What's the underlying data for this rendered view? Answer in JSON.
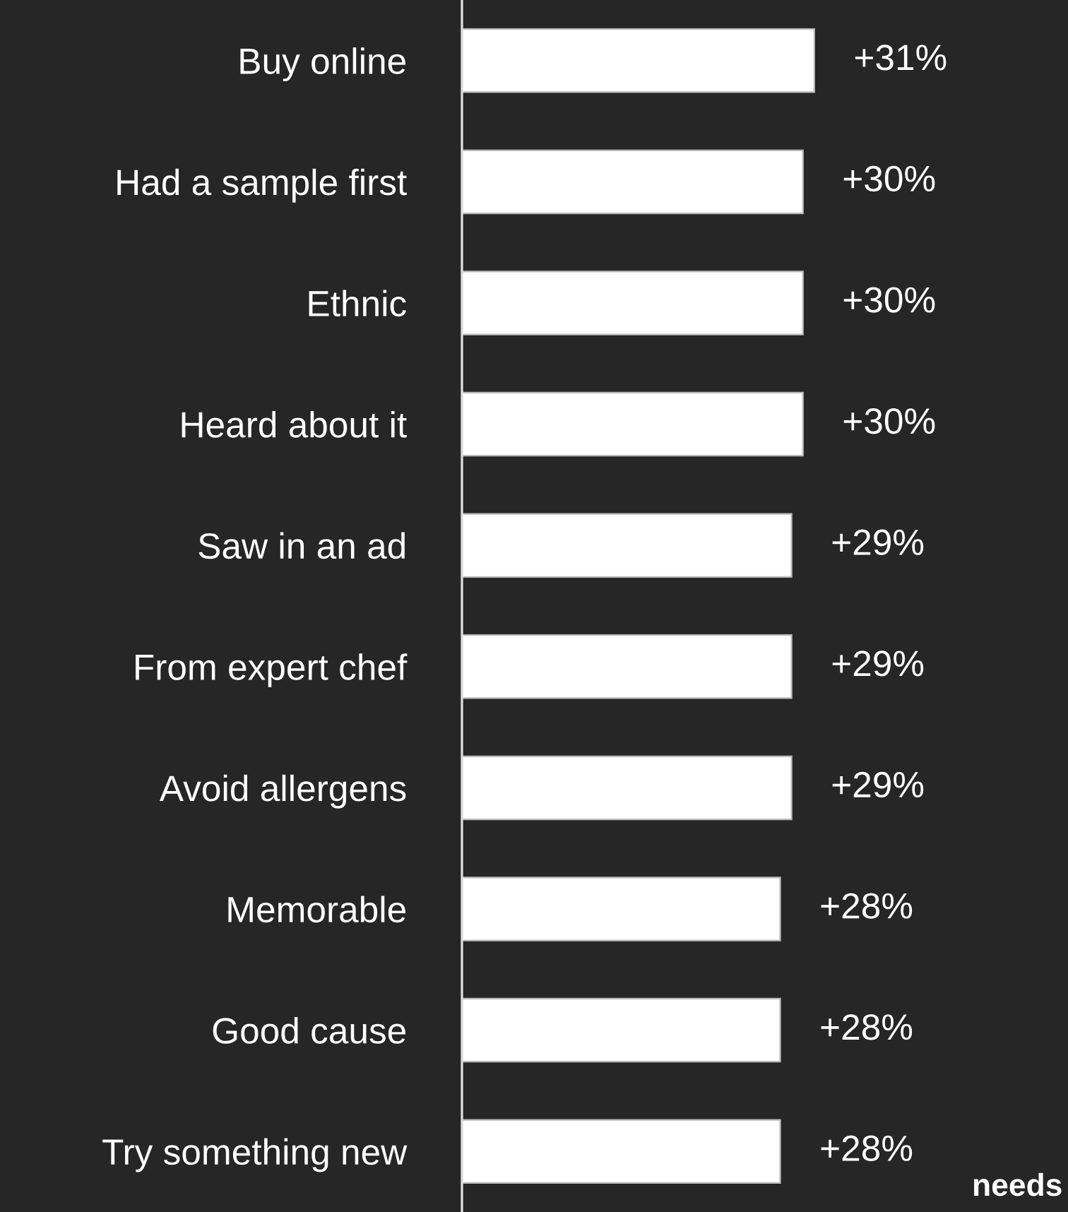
{
  "chart_data": {
    "type": "bar",
    "orientation": "horizontal",
    "categories": [
      "Buy online",
      "Had a sample first",
      "Ethnic",
      "Heard about it",
      "Saw in an ad",
      "From expert chef",
      "Avoid allergens",
      "Memorable",
      "Good cause",
      "Try something new"
    ],
    "values": [
      31,
      30,
      30,
      30,
      29,
      29,
      29,
      28,
      28,
      28
    ],
    "value_labels": [
      "+31%",
      "+30%",
      "+30%",
      "+30%",
      "+29%",
      "+29%",
      "+29%",
      "+28%",
      "+28%",
      "+28%"
    ],
    "color": "#ffffff",
    "annotations": [
      "needs"
    ]
  }
}
